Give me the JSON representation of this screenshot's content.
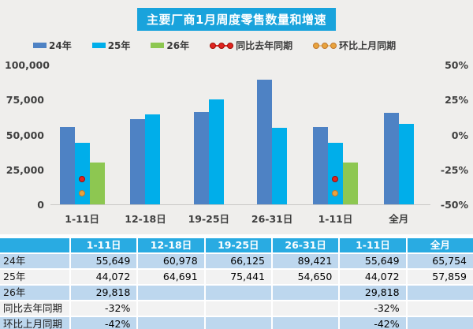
{
  "title": "主要厂商1月周度零售数量和增速",
  "colors": {
    "title_bg": "#19a3dc",
    "section_bg": "#efeeec",
    "bar_2024": "#4e82c4",
    "bar_2025": "#00aeea",
    "bar_2026": "#8dc751",
    "dot_yoy": "#e02420",
    "dot_yoy_ring": "#9c1006",
    "dot_mom": "#e8a33d",
    "dot_mom_ring": "#c07830",
    "table_header_bg": "#29abe2",
    "row_blue": "#bdd7ee",
    "row_gray": "#f2f2f2"
  },
  "chart_data": {
    "type": "bar",
    "title": "主要厂商1月周度零售数量和增速",
    "categories": [
      "1-11日",
      "12-18日",
      "19-25日",
      "26-31日",
      "1-11日",
      "全月"
    ],
    "series": [
      {
        "name": "24年",
        "kind": "bar",
        "axis": "left",
        "color_key": "bar_2024",
        "values": [
          55649,
          60978,
          66125,
          89421,
          55649,
          65754
        ]
      },
      {
        "name": "25年",
        "kind": "bar",
        "axis": "left",
        "color_key": "bar_2025",
        "values": [
          44072,
          64691,
          75441,
          54650,
          44072,
          57859
        ]
      },
      {
        "name": "26年",
        "kind": "bar",
        "axis": "left",
        "color_key": "bar_2026",
        "values": [
          29818,
          null,
          null,
          null,
          29818,
          null
        ]
      },
      {
        "name": "同比去年同期",
        "kind": "point",
        "axis": "right",
        "color_key": "dot_yoy",
        "ring_key": "dot_yoy_ring",
        "values": [
          -32,
          null,
          null,
          null,
          -32,
          null
        ]
      },
      {
        "name": "环比上月同期",
        "kind": "point",
        "axis": "right",
        "color_key": "dot_mom",
        "ring_key": "dot_mom_ring",
        "values": [
          -42,
          null,
          null,
          null,
          -42,
          null
        ]
      }
    ],
    "left_axis": {
      "min": 0,
      "max": 100000,
      "ticks": [
        "100,000",
        "75,000",
        "50,000",
        "25,000",
        "0"
      ]
    },
    "right_axis": {
      "min": -50,
      "max": 50,
      "ticks": [
        "50%",
        "25%",
        "0%",
        "-25%",
        "-50%"
      ]
    },
    "grid": false,
    "legend_position": "top"
  },
  "table": {
    "header": [
      "",
      "1-11日",
      "12-18日",
      "19-25日",
      "26-31日",
      "1-11日",
      "全月"
    ],
    "rows": [
      {
        "label": "24年",
        "cells": [
          "55,649",
          "60,978",
          "66,125",
          "89,421",
          "55,649",
          "65,754"
        ]
      },
      {
        "label": "25年",
        "cells": [
          "44,072",
          "64,691",
          "75,441",
          "54,650",
          "44,072",
          "57,859"
        ]
      },
      {
        "label": "26年",
        "cells": [
          "29,818",
          "",
          "",
          "",
          "29,818",
          ""
        ]
      },
      {
        "label": "同比去年同期",
        "cells": [
          "-32%",
          "",
          "",
          "",
          "-32%",
          ""
        ]
      },
      {
        "label": "环比上月同期",
        "cells": [
          "-42%",
          "",
          "",
          "",
          "-42%",
          ""
        ]
      }
    ]
  }
}
